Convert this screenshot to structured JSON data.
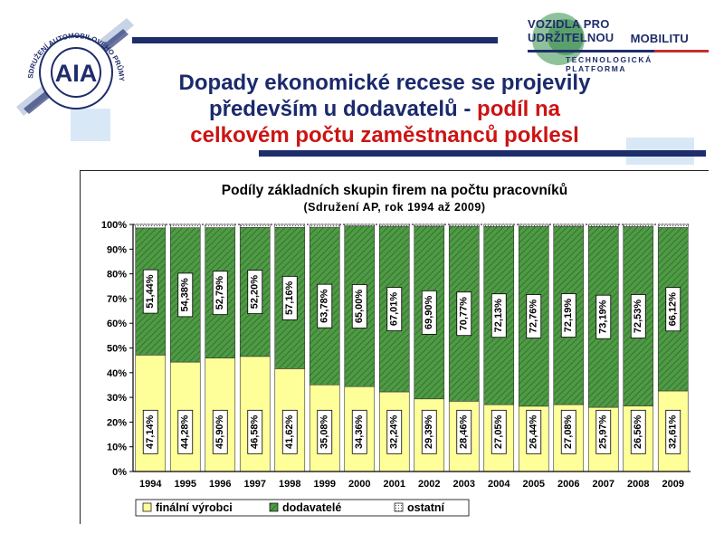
{
  "header": {
    "title_line1": "Dopady ekonomické recese se projevily",
    "title_line2_blue": "především u dodavatelů - ",
    "title_line2_red": "podíl na",
    "title_line3_red": "celkovém počtu zaměstnanců poklesl"
  },
  "logos": {
    "aia_text": "AIA",
    "aia_ring_text": "SDRUŽENÍ AUTOMOBILOVÉHO PRŮMYSLU",
    "vpum_line1": "VOZIDLA PRO UDRŽITELNOU",
    "vpum_line2": "MOBILITU",
    "vpum_line3": "TECHNOLOGICKÁ PLATFORMA"
  },
  "colors": {
    "title_blue": "#1b2a6c",
    "title_red": "#cc1414",
    "finalni": "#ffff99",
    "dodavatele": "#4f9a44",
    "ostatni": "#ffffff"
  },
  "chart_data": {
    "type": "bar",
    "stacked": true,
    "title": "Podíly základních skupin firem na počtu pracovníků",
    "subtitle": "(Sdružení AP, rok 1994 až 2009)",
    "categories": [
      "1994",
      "1995",
      "1996",
      "1997",
      "1998",
      "1999",
      "2000",
      "2001",
      "2002",
      "2003",
      "2004",
      "2005",
      "2006",
      "2007",
      "2008",
      "2009"
    ],
    "series": [
      {
        "name": "finální výrobci",
        "values": [
          47.14,
          44.28,
          45.9,
          46.58,
          41.62,
          35.08,
          34.36,
          32.24,
          29.39,
          28.46,
          27.05,
          26.44,
          27.08,
          25.97,
          26.56,
          32.61
        ],
        "labels": [
          "47,14%",
          "44,28%",
          "45,90%",
          "46,58%",
          "41,62%",
          "35,08%",
          "34,36%",
          "32,24%",
          "29,39%",
          "28,46%",
          "27,05%",
          "26,44%",
          "27,08%",
          "25,97%",
          "26,56%",
          "32,61%"
        ]
      },
      {
        "name": "dodavatelé",
        "values": [
          51.44,
          54.38,
          52.79,
          52.2,
          57.16,
          63.78,
          65.0,
          67.01,
          69.9,
          70.77,
          72.13,
          72.76,
          72.19,
          73.19,
          72.53,
          66.12
        ],
        "labels": [
          "51,44%",
          "54,38%",
          "52,79%",
          "52,20%",
          "57,16%",
          "63,78%",
          "65,00%",
          "67,01%",
          "69,90%",
          "70,77%",
          "72,13%",
          "72,76%",
          "72,19%",
          "73,19%",
          "72,53%",
          "66,12%"
        ]
      },
      {
        "name": "ostatní",
        "values": [
          1.42,
          1.34,
          1.31,
          1.22,
          1.22,
          1.14,
          0.64,
          0.75,
          0.71,
          0.77,
          0.82,
          0.8,
          0.73,
          0.84,
          0.91,
          1.27
        ]
      }
    ],
    "yticks": [
      "0%",
      "10%",
      "20%",
      "30%",
      "40%",
      "50%",
      "60%",
      "70%",
      "80%",
      "90%",
      "100%"
    ],
    "ylim": [
      0,
      100
    ],
    "legend": "bottom-left"
  }
}
